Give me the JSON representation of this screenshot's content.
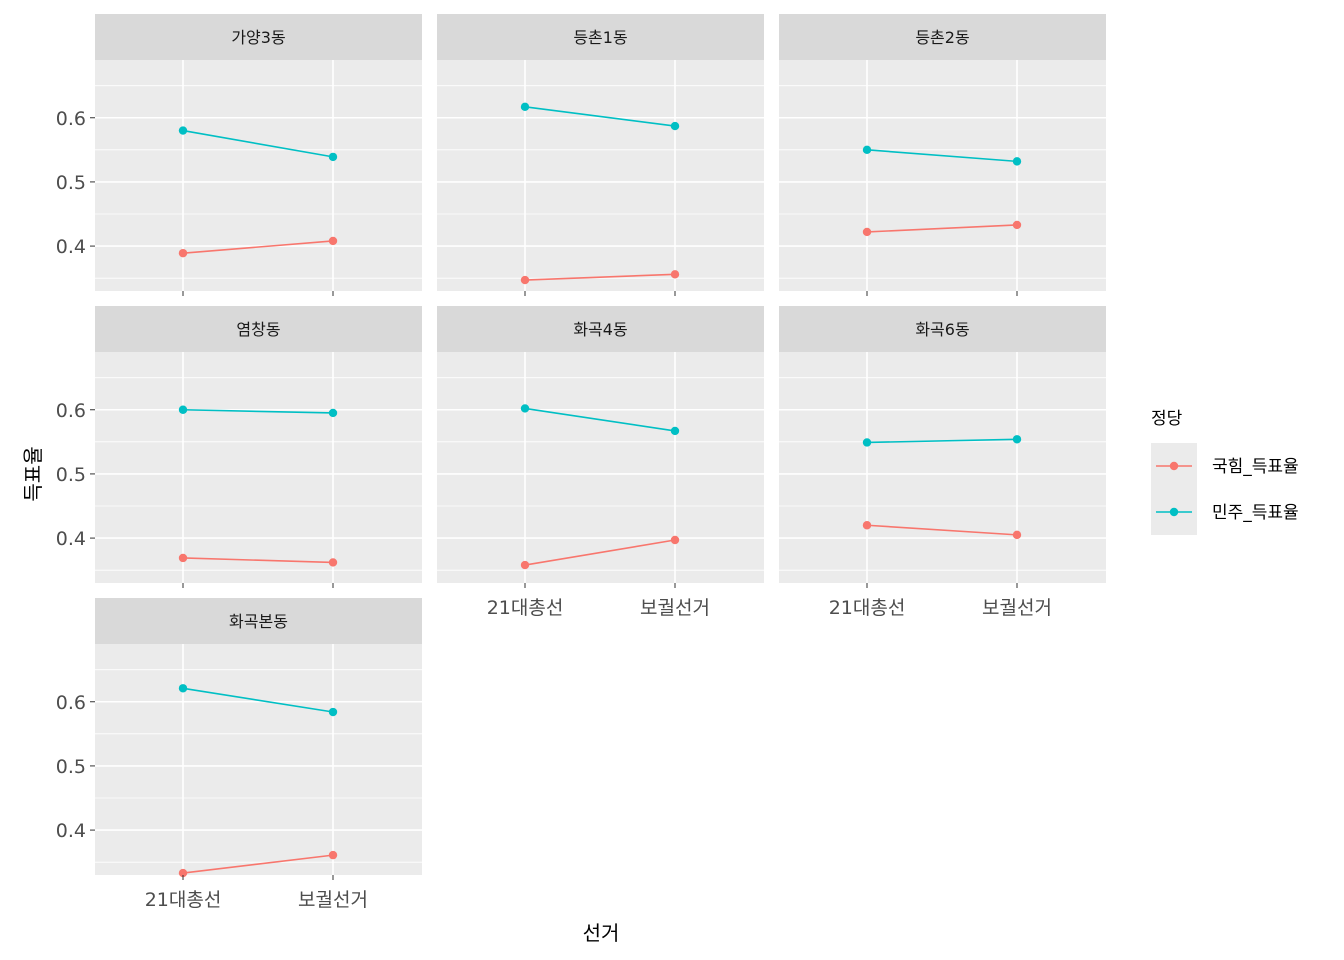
{
  "chart_data": {
    "type": "line",
    "facet_by": "dong",
    "xlabel": "선거",
    "ylabel": "득표율",
    "categories": [
      "21대총선",
      "보궐선거"
    ],
    "ylim": [
      0.33,
      0.69
    ],
    "y_ticks": [
      0.4,
      0.5,
      0.6
    ],
    "y_tick_labels": [
      "0.4",
      "0.5",
      "0.6"
    ],
    "legend": {
      "title": "정당",
      "placement": "right",
      "entries": [
        {
          "name": "국힘_득표율",
          "color": "#F8766D"
        },
        {
          "name": "민주_득표율",
          "color": "#00BFC4"
        }
      ]
    },
    "facets": [
      {
        "title": "가양3동",
        "series": [
          {
            "name": "국힘_득표율",
            "values": [
              0.389,
              0.408
            ]
          },
          {
            "name": "민주_득표율",
            "values": [
              0.58,
              0.539
            ]
          }
        ]
      },
      {
        "title": "등촌1동",
        "series": [
          {
            "name": "국힘_득표율",
            "values": [
              0.347,
              0.356
            ]
          },
          {
            "name": "민주_득표율",
            "values": [
              0.617,
              0.587
            ]
          }
        ]
      },
      {
        "title": "등촌2동",
        "series": [
          {
            "name": "국힘_득표율",
            "values": [
              0.422,
              0.433
            ]
          },
          {
            "name": "민주_득표율",
            "values": [
              0.55,
              0.532
            ]
          }
        ]
      },
      {
        "title": "염창동",
        "series": [
          {
            "name": "국힘_득표율",
            "values": [
              0.369,
              0.362
            ]
          },
          {
            "name": "민주_득표율",
            "values": [
              0.6,
              0.595
            ]
          }
        ]
      },
      {
        "title": "화곡4동",
        "series": [
          {
            "name": "국힘_득표율",
            "values": [
              0.358,
              0.397
            ]
          },
          {
            "name": "민주_득표율",
            "values": [
              0.602,
              0.567
            ]
          }
        ]
      },
      {
        "title": "화곡6동",
        "series": [
          {
            "name": "국힘_득표율",
            "values": [
              0.42,
              0.405
            ]
          },
          {
            "name": "민주_득표율",
            "values": [
              0.549,
              0.554
            ]
          }
        ]
      },
      {
        "title": "화곡본동",
        "series": [
          {
            "name": "국힘_득표율",
            "values": [
              0.333,
              0.361
            ]
          },
          {
            "name": "민주_득표율",
            "values": [
              0.621,
              0.584
            ]
          }
        ]
      }
    ]
  }
}
